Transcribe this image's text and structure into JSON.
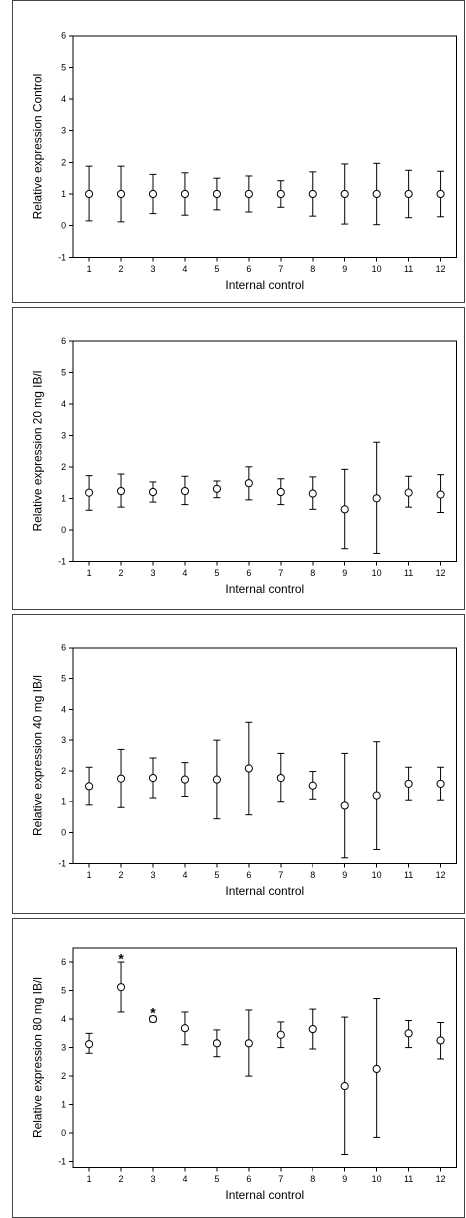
{
  "chart_data": [
    {
      "type": "scatter",
      "ylabel": "Relative expression Control",
      "xlabel": "Internal control",
      "categories": [
        "1",
        "2",
        "3",
        "4",
        "5",
        "6",
        "7",
        "8",
        "9",
        "10",
        "11",
        "12"
      ],
      "yticks": [
        "-1",
        "0",
        "1",
        "2",
        "3",
        "4",
        "5",
        "6"
      ],
      "ylim": [
        -1,
        6
      ],
      "mean": [
        1,
        1,
        1,
        1,
        1,
        1,
        1,
        1,
        1,
        1,
        1,
        1
      ],
      "lower": [
        0.15,
        0.12,
        0.38,
        0.33,
        0.5,
        0.43,
        0.58,
        0.3,
        0.05,
        0.03,
        0.25,
        0.28
      ],
      "upper": [
        1.88,
        1.88,
        1.62,
        1.67,
        1.5,
        1.57,
        1.42,
        1.7,
        1.95,
        1.97,
        1.75,
        1.72
      ],
      "annotations": []
    },
    {
      "type": "scatter",
      "ylabel": "Relative expression 20 mg IB/l",
      "xlabel": "Internal control",
      "categories": [
        "1",
        "2",
        "3",
        "4",
        "5",
        "6",
        "7",
        "8",
        "9",
        "10",
        "11",
        "12"
      ],
      "yticks": [
        "-1",
        "0",
        "1",
        "2",
        "3",
        "4",
        "5",
        "6"
      ],
      "ylim": [
        -1,
        6
      ],
      "mean": [
        1.18,
        1.23,
        1.2,
        1.23,
        1.3,
        1.48,
        1.2,
        1.15,
        0.65,
        1.0,
        1.18,
        1.12
      ],
      "lower": [
        0.62,
        0.72,
        0.88,
        0.8,
        1.02,
        0.95,
        0.8,
        0.65,
        -0.6,
        -0.75,
        0.72,
        0.55
      ],
      "upper": [
        1.72,
        1.77,
        1.52,
        1.7,
        1.55,
        2.0,
        1.62,
        1.68,
        1.92,
        2.78,
        1.7,
        1.75
      ],
      "annotations": []
    },
    {
      "type": "scatter",
      "ylabel": "Relative expression 40 mg IB/l",
      "xlabel": "Internal control",
      "categories": [
        "1",
        "2",
        "3",
        "4",
        "5",
        "6",
        "7",
        "8",
        "9",
        "10",
        "11",
        "12"
      ],
      "yticks": [
        "-1",
        "0",
        "1",
        "2",
        "3",
        "4",
        "5",
        "6"
      ],
      "ylim": [
        -1,
        6
      ],
      "mean": [
        1.5,
        1.75,
        1.77,
        1.72,
        1.72,
        2.08,
        1.77,
        1.52,
        0.88,
        1.2,
        1.58,
        1.58
      ],
      "lower": [
        0.9,
        0.82,
        1.12,
        1.17,
        0.45,
        0.58,
        1.0,
        1.08,
        -0.82,
        -0.55,
        1.05,
        1.05
      ],
      "upper": [
        2.12,
        2.7,
        2.42,
        2.27,
        3.0,
        3.58,
        2.57,
        1.98,
        2.57,
        2.95,
        2.12,
        2.12
      ],
      "annotations": []
    },
    {
      "type": "scatter",
      "ylabel": "Relative expression 80 mg IB/l",
      "xlabel": "Internal control",
      "categories": [
        "1",
        "2",
        "3",
        "4",
        "5",
        "6",
        "7",
        "8",
        "9",
        "10",
        "11",
        "12"
      ],
      "yticks": [
        "-1",
        "0",
        "1",
        "2",
        "3",
        "4",
        "5",
        "6"
      ],
      "ylim": [
        -1.2,
        6.5
      ],
      "mean": [
        3.12,
        5.12,
        4.0,
        3.68,
        3.15,
        3.15,
        3.45,
        3.65,
        1.65,
        2.25,
        3.5,
        3.25
      ],
      "lower": [
        2.8,
        4.25,
        3.9,
        3.1,
        2.68,
        2.0,
        3.0,
        2.95,
        -0.75,
        -0.15,
        3.0,
        2.6
      ],
      "upper": [
        3.5,
        6.0,
        4.1,
        4.25,
        3.62,
        4.32,
        3.9,
        4.35,
        4.07,
        4.72,
        3.95,
        3.88
      ],
      "annotations": [
        {
          "category": "2",
          "text": "*",
          "y": 6.2
        },
        {
          "category": "3",
          "text": "*",
          "y": 4.3
        }
      ]
    }
  ]
}
